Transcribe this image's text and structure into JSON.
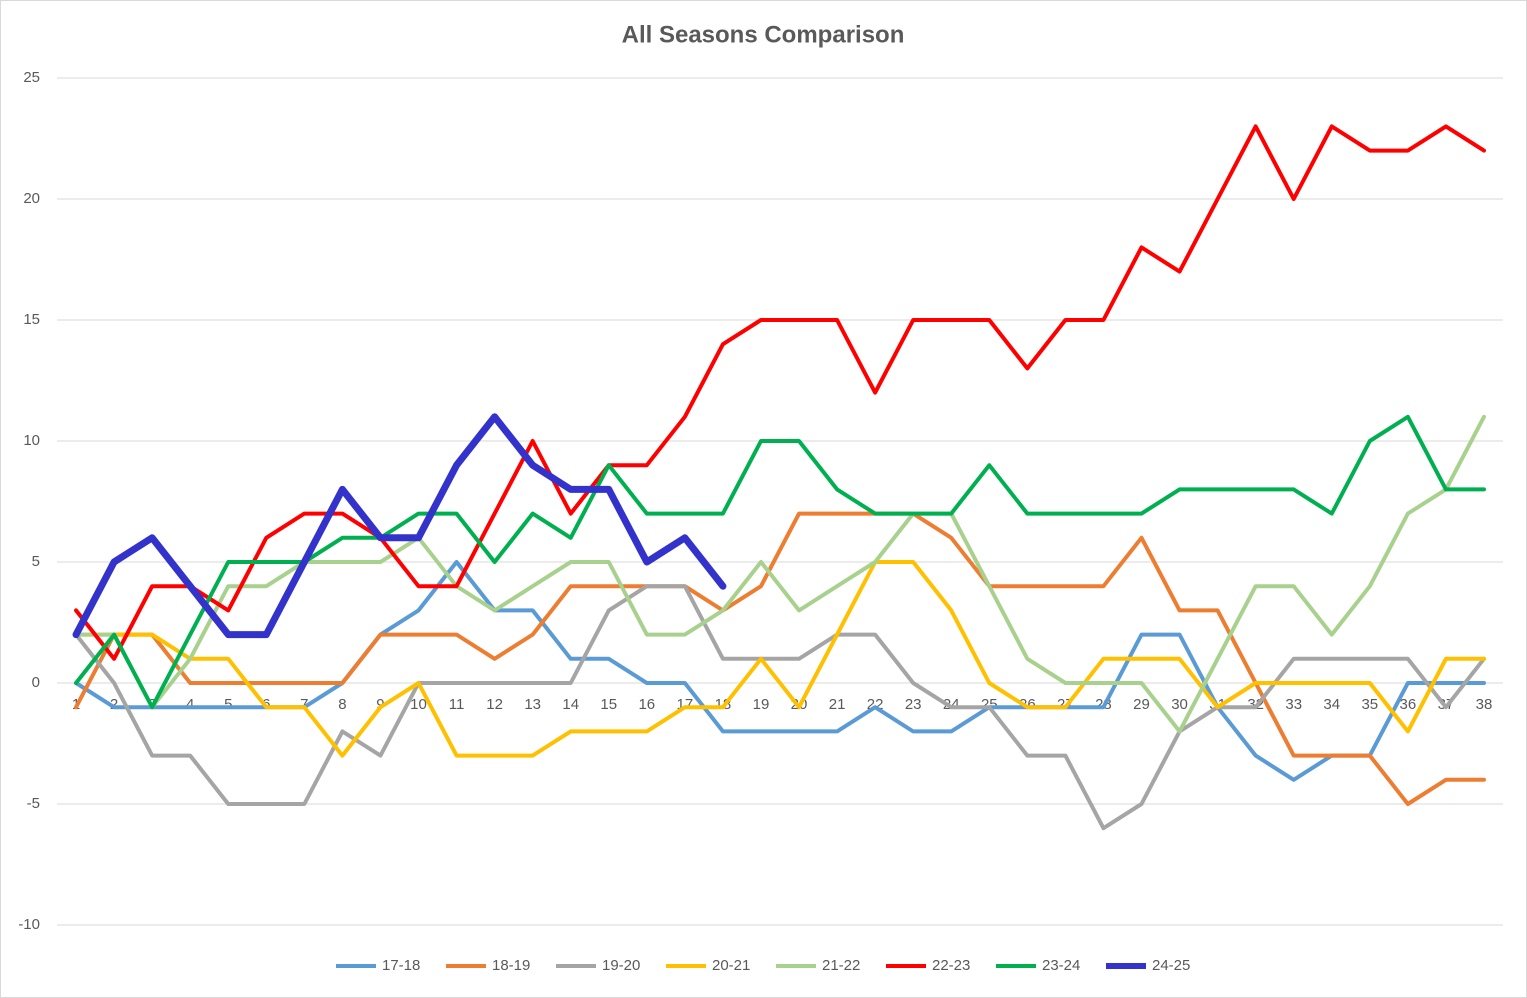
{
  "chart_data": {
    "type": "line",
    "title": "All Seasons Comparison",
    "categories": [
      1,
      2,
      3,
      4,
      5,
      6,
      7,
      8,
      9,
      10,
      11,
      12,
      13,
      14,
      15,
      16,
      17,
      18,
      19,
      20,
      21,
      22,
      23,
      24,
      25,
      26,
      27,
      28,
      29,
      30,
      31,
      32,
      33,
      34,
      35,
      36,
      37,
      38
    ],
    "ylim": [
      -10,
      25
    ],
    "yticks": [
      -10,
      -5,
      0,
      5,
      10,
      15,
      20,
      25
    ],
    "grid": true,
    "legend": "bottom",
    "series": [
      {
        "name": "17-18",
        "color": "#5b9bd5",
        "values": [
          0,
          -1,
          -1,
          -1,
          -1,
          -1,
          -1,
          0,
          2,
          3,
          5,
          3,
          3,
          1,
          1,
          0,
          0,
          -2,
          -2,
          -2,
          -2,
          -1,
          -2,
          -2,
          -1,
          -1,
          -1,
          -1,
          2,
          2,
          -1,
          -3,
          -4,
          -3,
          -3,
          0,
          0,
          0
        ]
      },
      {
        "name": "18-19",
        "color": "#ed7d31",
        "values": [
          -1,
          2,
          2,
          0,
          0,
          0,
          0,
          0,
          2,
          2,
          2,
          1,
          2,
          4,
          4,
          4,
          4,
          3,
          4,
          7,
          7,
          7,
          7,
          6,
          4,
          4,
          4,
          4,
          6,
          3,
          3,
          0,
          -3,
          -3,
          -3,
          -5,
          -4,
          -4
        ]
      },
      {
        "name": "19-20",
        "color": "#a5a5a5",
        "values": [
          2,
          0,
          -3,
          -3,
          -5,
          -5,
          -5,
          -2,
          -3,
          0,
          0,
          0,
          0,
          0,
          3,
          4,
          4,
          1,
          1,
          1,
          2,
          2,
          0,
          -1,
          -1,
          -3,
          -3,
          -6,
          -5,
          -2,
          -1,
          -1,
          1,
          1,
          1,
          1,
          -1,
          1
        ]
      },
      {
        "name": "20-21",
        "color": "#ffc000",
        "values": [
          2,
          2,
          2,
          1,
          1,
          -1,
          -1,
          -3,
          -1,
          0,
          -3,
          -3,
          -3,
          -2,
          -2,
          -2,
          -1,
          -1,
          1,
          -1,
          2,
          5,
          5,
          3,
          0,
          -1,
          -1,
          1,
          1,
          1,
          -1,
          0,
          0,
          0,
          0,
          -2,
          1,
          1
        ]
      },
      {
        "name": "21-22",
        "color": "#a9d18e",
        "values": [
          2,
          2,
          -1,
          1,
          4,
          4,
          5,
          5,
          5,
          6,
          4,
          3,
          4,
          5,
          5,
          2,
          2,
          3,
          5,
          3,
          4,
          5,
          7,
          7,
          4,
          1,
          0,
          0,
          0,
          -2,
          1,
          4,
          4,
          2,
          4,
          7,
          8,
          11
        ]
      },
      {
        "name": "22-23",
        "color": "#ff0000",
        "values": [
          3,
          1,
          4,
          4,
          3,
          6,
          7,
          7,
          6,
          4,
          4,
          7,
          10,
          7,
          9,
          9,
          11,
          14,
          15,
          15,
          15,
          12,
          15,
          15,
          15,
          13,
          15,
          15,
          18,
          17,
          20,
          23,
          20,
          23,
          22,
          22,
          23,
          22
        ]
      },
      {
        "name": "23-24",
        "color": "#00b050",
        "values": [
          0,
          2,
          -1,
          2,
          5,
          5,
          5,
          6,
          6,
          7,
          7,
          5,
          7,
          6,
          9,
          7,
          7,
          7,
          10,
          10,
          8,
          7,
          7,
          7,
          9,
          7,
          7,
          7,
          7,
          8,
          8,
          8,
          8,
          7,
          10,
          11,
          8,
          8
        ]
      },
      {
        "name": "24-25",
        "color": "#3333cc",
        "values": [
          2,
          5,
          6,
          4,
          2,
          2,
          5,
          8,
          6,
          6,
          9,
          11,
          9,
          8,
          8,
          5,
          6,
          4,
          null,
          null,
          null,
          null,
          null,
          null,
          null,
          null,
          null,
          null,
          null,
          null,
          null,
          null,
          null,
          null,
          null,
          null,
          null,
          null
        ]
      }
    ]
  }
}
